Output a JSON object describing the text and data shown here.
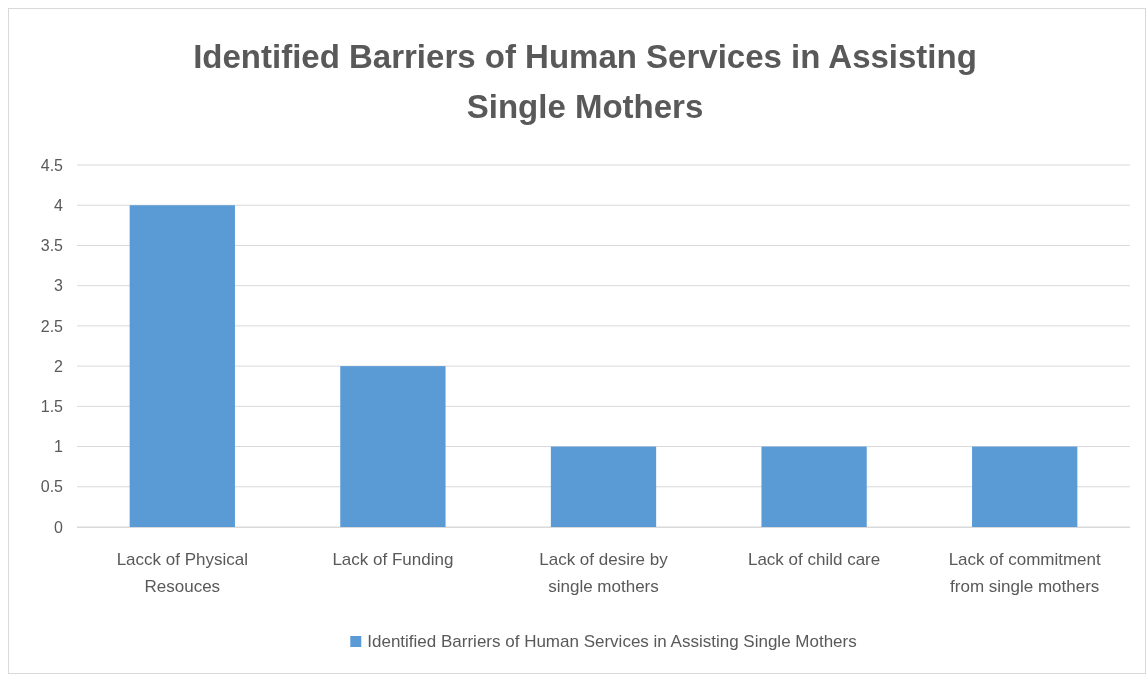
{
  "chart_data": {
    "type": "bar",
    "title": "Identified Barriers of Human Services in Assisting Single Mothers",
    "categories": [
      "Lacck of Physical Resouces",
      "Lack of Funding",
      "Lack of desire by single mothers",
      "Lack of child care",
      "Lack of commitment from single mothers"
    ],
    "series": [
      {
        "name": "Identified Barriers of Human Services in Assisting Single Mothers",
        "color": "#5b9bd5",
        "values": [
          4,
          2,
          1,
          1,
          1
        ]
      }
    ],
    "ylim": [
      0,
      4.5
    ],
    "yticks": [
      0,
      0.5,
      1,
      1.5,
      2,
      2.5,
      3,
      3.5,
      4,
      4.5
    ],
    "grid": "y",
    "legend": "bottom"
  }
}
